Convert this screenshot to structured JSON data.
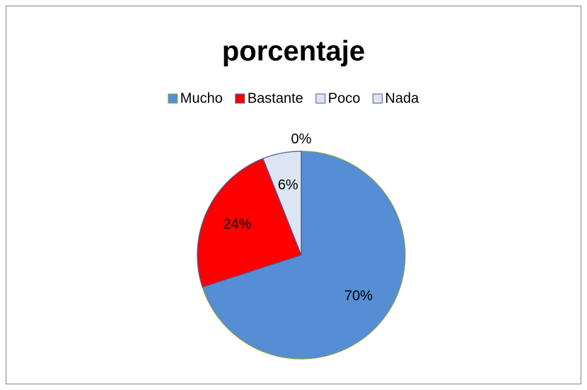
{
  "chart_data": {
    "type": "pie",
    "title": "porcentaje",
    "categories": [
      "Mucho",
      "Bastante",
      "Poco",
      "Nada"
    ],
    "values": [
      70,
      24,
      6,
      0
    ],
    "value_labels": [
      "70%",
      "24%",
      "6%",
      "0%"
    ],
    "colors": [
      "#558ed5",
      "#ff0000",
      "#dce6f2",
      "#e4e4f0"
    ],
    "legend": "top"
  }
}
